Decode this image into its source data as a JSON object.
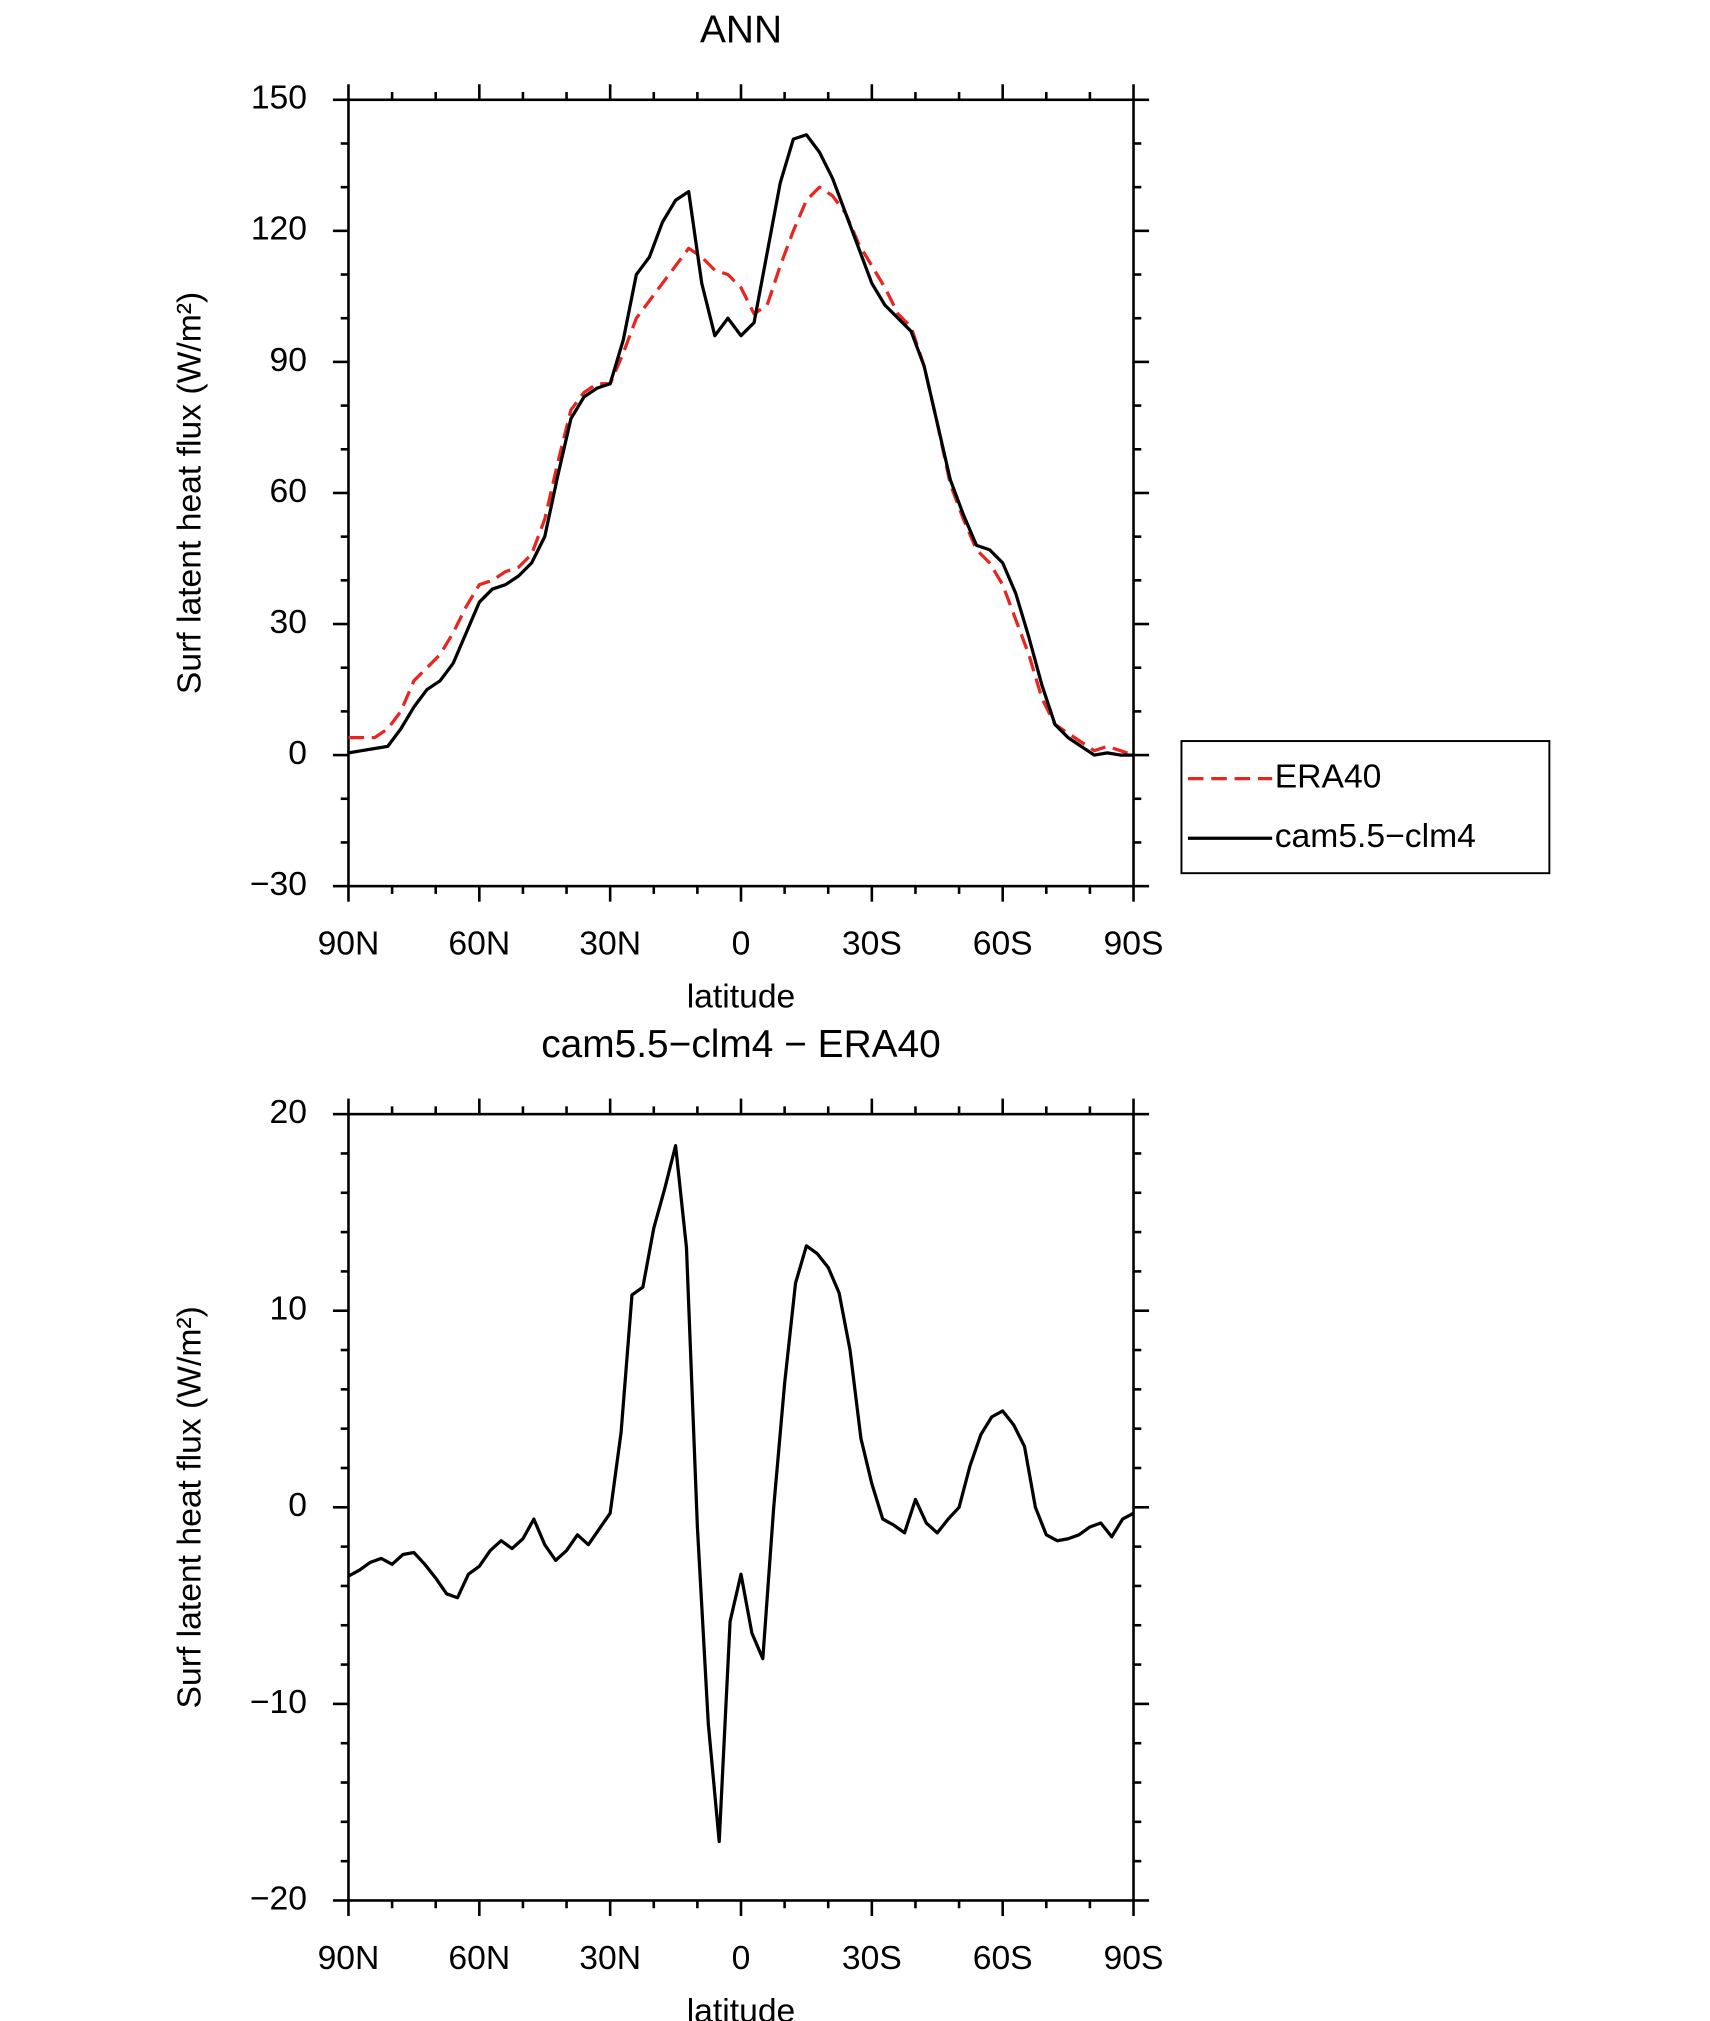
{
  "chart_data": [
    {
      "type": "line",
      "title": "ANN",
      "xlabel": "latitude",
      "ylabel": "Surf latent heat flux (W/m²)",
      "x": [
        90,
        87,
        84,
        81,
        78,
        75,
        72,
        69,
        66,
        63,
        60,
        57,
        54,
        51,
        48,
        45,
        42,
        39,
        36,
        33,
        30,
        27,
        24,
        21,
        18,
        15,
        12,
        9,
        6,
        3,
        0,
        -3,
        -6,
        -9,
        -12,
        -15,
        -18,
        -21,
        -24,
        -27,
        -30,
        -33,
        -36,
        -39,
        -42,
        -45,
        -48,
        -51,
        -54,
        -57,
        -60,
        -63,
        -66,
        -69,
        -72,
        -75,
        -78,
        -81,
        -84,
        -87,
        -90
      ],
      "series": [
        {
          "name": "ERA40",
          "color": "#e8251f",
          "dashed": true,
          "values": [
            4,
            4,
            4,
            6,
            10,
            17,
            20,
            23,
            28,
            34,
            39,
            40,
            42,
            43,
            46,
            54,
            67,
            79,
            83,
            85,
            85,
            92,
            100,
            104,
            108,
            112,
            116,
            114,
            111,
            110,
            107,
            101,
            103,
            112,
            120,
            127,
            130,
            128,
            124,
            117,
            112,
            107,
            101,
            98,
            89,
            76,
            62,
            54,
            47,
            44,
            39,
            31,
            23,
            13,
            7,
            5,
            3,
            1,
            2,
            1,
            0
          ]
        },
        {
          "name": "cam5.5−clm4",
          "color": "#000000",
          "dashed": false,
          "values": [
            0.5,
            1,
            1.5,
            2,
            6,
            11,
            15,
            17,
            21,
            28,
            35,
            38,
            39,
            41,
            44,
            50,
            64,
            77,
            82,
            84,
            85,
            95,
            110,
            114,
            122,
            127,
            129,
            108,
            96,
            100,
            96,
            99,
            115,
            131,
            141,
            142,
            138,
            132,
            124,
            116,
            108,
            103,
            100,
            97,
            89,
            76,
            63,
            55,
            48,
            47,
            44,
            37,
            27,
            16,
            7,
            4,
            2,
            0,
            0.5,
            0,
            0
          ]
        }
      ],
      "xlim": [
        90,
        -90
      ],
      "xticks": [
        {
          "value": 90,
          "label": "90N"
        },
        {
          "value": 60,
          "label": "60N"
        },
        {
          "value": 30,
          "label": "30N"
        },
        0,
        {
          "value": -30,
          "label": "30S"
        },
        {
          "value": -60,
          "label": "60S"
        },
        {
          "value": -90,
          "label": "90S"
        }
      ],
      "minor_xticks": [
        80,
        70,
        50,
        40,
        20,
        10,
        -10,
        -20,
        -40,
        -50,
        -70,
        -80
      ],
      "ylim": [
        -30,
        150
      ],
      "yticks": [
        {
          "value": -30,
          "label": "−30"
        },
        0,
        30,
        60,
        90,
        120,
        150
      ],
      "minor_yticks": [
        -20,
        -10,
        10,
        20,
        40,
        50,
        70,
        80,
        100,
        110,
        130,
        140
      ],
      "legend": "right"
    },
    {
      "type": "line",
      "title": "cam5.5−clm4 − ERA40",
      "xlabel": "latitude",
      "ylabel": "Surf latent heat flux (W/m²)",
      "x": [
        90,
        87.5,
        85,
        82.5,
        80,
        77.5,
        75,
        72.5,
        70,
        67.5,
        65,
        62.5,
        60,
        57.5,
        55,
        52.5,
        50,
        47.5,
        45,
        42.5,
        40,
        37.5,
        35,
        32.5,
        30,
        27.5,
        25,
        22.5,
        20,
        17.5,
        15,
        12.5,
        10,
        7.5,
        5,
        2.5,
        0,
        -2.5,
        -5,
        -7.5,
        -10,
        -12.5,
        -15,
        -17.5,
        -20,
        -22.5,
        -25,
        -27.5,
        -30,
        -32.5,
        -35,
        -37.5,
        -40,
        -42.5,
        -45,
        -47.5,
        -50,
        -52.5,
        -55,
        -57.5,
        -60,
        -62.5,
        -65,
        -67.5,
        -70,
        -72.5,
        -75,
        -77.5,
        -80,
        -82.5,
        -85,
        -87.5,
        -90
      ],
      "values": [
        -3.5,
        -3.2,
        -2.8,
        -2.6,
        -2.9,
        -2.4,
        -2.3,
        -2.9,
        -3.6,
        -4.4,
        -4.6,
        -3.4,
        -3.0,
        -2.2,
        -1.7,
        -2.1,
        -1.6,
        -0.6,
        -1.9,
        -2.7,
        -2.2,
        -1.4,
        -1.9,
        -1.1,
        -0.3,
        3.8,
        10.8,
        11.2,
        14.2,
        16.2,
        18.4,
        13.2,
        -1,
        -11,
        -17,
        -5.8,
        -3.4,
        -6.4,
        -7.7,
        0,
        6.3,
        11.4,
        13.3,
        12.9,
        12.2,
        10.9,
        8,
        3.5,
        1.2,
        -0.6,
        -0.9,
        -1.3,
        0.4,
        -0.8,
        -1.3,
        -0.6,
        0,
        2.1,
        3.7,
        4.6,
        4.9,
        4.2,
        3.1,
        0,
        -1.4,
        -1.7,
        -1.6,
        -1.4,
        -1.0,
        -0.8,
        -1.5,
        -0.6,
        -0.3
      ],
      "color": "#000000",
      "xlim": [
        90,
        -90
      ],
      "xticks": [
        {
          "value": 90,
          "label": "90N"
        },
        {
          "value": 60,
          "label": "60N"
        },
        {
          "value": 30,
          "label": "30N"
        },
        0,
        {
          "value": -30,
          "label": "30S"
        },
        {
          "value": -60,
          "label": "60S"
        },
        {
          "value": -90,
          "label": "90S"
        }
      ],
      "minor_xticks": [
        80,
        70,
        50,
        40,
        20,
        10,
        -10,
        -20,
        -40,
        -50,
        -70,
        -80
      ],
      "ylim": [
        -20,
        20
      ],
      "yticks": [
        {
          "value": -20,
          "label": "−20"
        },
        {
          "value": -10,
          "label": "−10"
        },
        0,
        10,
        20
      ],
      "minor_yticks": [
        -18,
        -16,
        -14,
        -12,
        -8,
        -6,
        -4,
        -2,
        2,
        4,
        6,
        8,
        12,
        14,
        16,
        18
      ]
    }
  ]
}
